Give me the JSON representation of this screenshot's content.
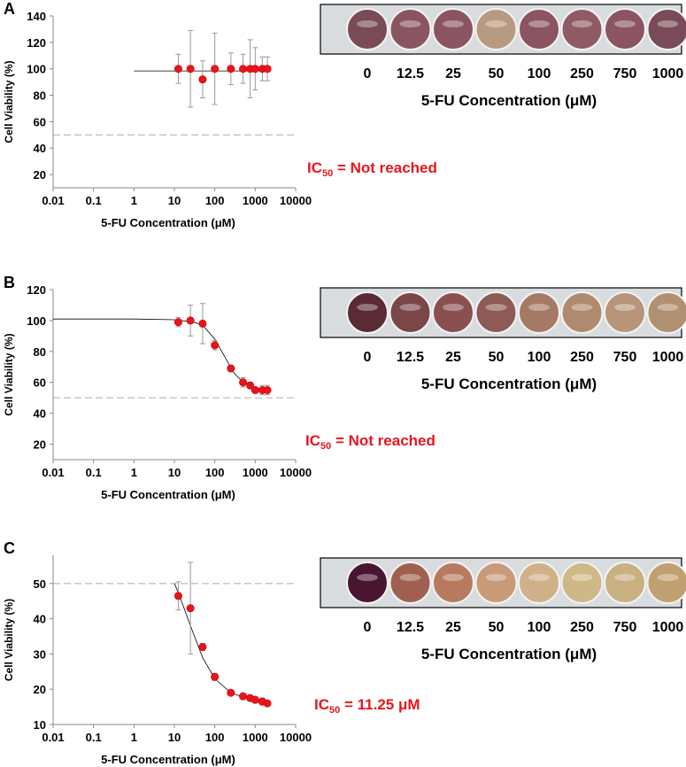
{
  "chart_data": [
    {
      "type": "scatter",
      "panel": "A",
      "x_label": "5-FU Concentration (μM)",
      "y_label": "Cell Viability (%)",
      "log_x": true,
      "xlim": [
        0.01,
        10000
      ],
      "xticks": [
        0.01,
        0.1,
        1,
        10,
        100,
        1000,
        10000
      ],
      "ylim": [
        10,
        140
      ],
      "yticks": [
        20,
        40,
        60,
        80,
        100,
        120,
        140
      ],
      "x": [
        12.5,
        25,
        50,
        100,
        250,
        500,
        750,
        1000,
        1500,
        2000
      ],
      "values": [
        100,
        100,
        92,
        100,
        100,
        100,
        100,
        100,
        100,
        100
      ],
      "errors": [
        11,
        29,
        14,
        27,
        12,
        11,
        22,
        16,
        9,
        9
      ],
      "color": "#e8141c",
      "threshold": 50,
      "fit": {
        "x": [
          1,
          10,
          100,
          1000,
          2000
        ],
        "y": [
          98.4,
          98.4,
          98.4,
          98.4,
          98.4
        ]
      },
      "ic50": {
        "prefix": "IC",
        "sub": "50",
        "text": " = Not reached"
      },
      "well_labels": [
        "0",
        "12.5",
        "25",
        "50",
        "100",
        "250",
        "750",
        "1000"
      ],
      "well_colors": [
        "#7a4a55",
        "#8a5560",
        "#8a5560",
        "#b89a80",
        "#8a5560",
        "#905a65",
        "#8a5560",
        "#7a4a58"
      ],
      "well_caption": "5-FU Concentration (μM)"
    },
    {
      "type": "scatter",
      "panel": "B",
      "x_label": "5-FU Concentration (μM)",
      "y_label": "Cell Viability (%)",
      "log_x": true,
      "xlim": [
        0.01,
        10000
      ],
      "xticks": [
        0.01,
        0.1,
        1,
        10,
        100,
        1000,
        10000
      ],
      "ylim": [
        10,
        120
      ],
      "yticks": [
        20,
        40,
        60,
        80,
        100,
        120
      ],
      "x": [
        12.5,
        25,
        50,
        100,
        250,
        500,
        750,
        1000,
        1500,
        2000
      ],
      "values": [
        99,
        100,
        98,
        84,
        69,
        60,
        58,
        55,
        55,
        55
      ],
      "errors": [
        3,
        10,
        13,
        3,
        2,
        3,
        2,
        2,
        3,
        3
      ],
      "color": "#e8141c",
      "threshold": 50,
      "fit": {
        "x": [
          0.01,
          1,
          10,
          30,
          50,
          100,
          200,
          300,
          500,
          1000,
          2000
        ],
        "y": [
          101,
          101,
          100.5,
          99,
          97,
          88,
          74,
          66,
          60,
          56,
          54.5
        ]
      },
      "ic50": {
        "prefix": "IC",
        "sub": "50",
        "text": " = Not reached"
      },
      "well_labels": [
        "0",
        "12.5",
        "25",
        "50",
        "100",
        "250",
        "750",
        "1000"
      ],
      "well_colors": [
        "#5a2a35",
        "#7a4648",
        "#8a5050",
        "#8e5a55",
        "#a57a65",
        "#b08a6e",
        "#b8957a",
        "#b09070"
      ],
      "well_caption": "5-FU Concentration (μM)"
    },
    {
      "type": "scatter",
      "panel": "C",
      "x_label": "5-FU Concentration (μM)",
      "y_label": "Cell Viability (%)",
      "log_x": true,
      "xlim": [
        0.01,
        10000
      ],
      "xticks": [
        0.01,
        0.1,
        1,
        10,
        100,
        1000,
        10000
      ],
      "ylim": [
        10,
        58
      ],
      "yticks": [
        10,
        20,
        30,
        40,
        50
      ],
      "x": [
        12.5,
        25,
        50,
        100,
        250,
        500,
        750,
        1000,
        1500,
        2000
      ],
      "values": [
        46.5,
        43,
        32,
        23.5,
        19,
        18,
        17.5,
        17,
        16.5,
        16
      ],
      "errors": [
        4,
        13,
        1,
        1,
        0.5,
        0.5,
        0.5,
        0.5,
        1,
        0.5
      ],
      "color": "#e8141c",
      "threshold": 50,
      "fit": {
        "x": [
          10,
          12.5,
          25,
          50,
          100,
          250,
          500,
          1000,
          2000
        ],
        "y": [
          50,
          47.5,
          38,
          29,
          23,
          19,
          17.8,
          16.8,
          16.2
        ]
      },
      "ic50": {
        "prefix": "IC",
        "sub": "50",
        "text": " = 11.25 μM"
      },
      "well_labels": [
        "0",
        "12.5",
        "25",
        "50",
        "100",
        "250",
        "750",
        "1000"
      ],
      "well_colors": [
        "#4a1530",
        "#a06050",
        "#b87a5e",
        "#c89a78",
        "#d0b088",
        "#cfb888",
        "#c8b080",
        "#c0a070"
      ],
      "well_caption": "5-FU Concentration (μM)"
    }
  ]
}
